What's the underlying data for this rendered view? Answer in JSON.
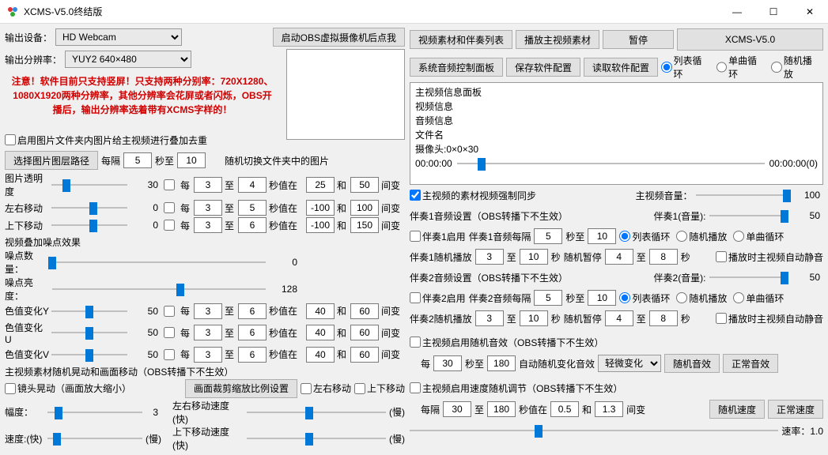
{
  "title": "XCMS-V5.0终结版",
  "win": {
    "min": "—",
    "max": "☐",
    "close": "✕"
  },
  "labels": {
    "output_device": "输出设备：",
    "output_res": "输出分辨率：",
    "start_obs": "启动OBS虚拟摄像机后点我",
    "switch_pics": "随机切换文件夹中的图片",
    "select_path": "选择图片图层路径",
    "interval": "每隔",
    "sec_to": "秒至",
    "sec": "秒",
    "to": "至",
    "value_at": "秒值在",
    "and": "和",
    "between": "间变",
    "each": "每",
    "used": "启用图片文件夹内图片给主视频进行叠加去重",
    "opacity": "图片透明度",
    "lrmove": "左右移动",
    "udmove": "上下移动",
    "noise_hdr": "视频叠加噪点效果",
    "noise_count": "噪点数量：",
    "noise_bright": "噪点亮度：",
    "colY": "色值变化Y",
    "colU": "色值变化U",
    "colV": "色值变化V",
    "shake_hdr": "主视频素材随机晃动和画面移动（OBS转播下不生效）",
    "lens_shake": "镜头晃动（画面放大缩小）",
    "crop_scale": "画面裁剪缩放比例设置",
    "lrmove2": "左右移动",
    "udmove2": "上下移动",
    "amplitude": "幅度：",
    "speed_fast": "速度:(快)",
    "slow": "(慢)",
    "lrspeed": "左右移动速度(快)",
    "udspeed": "上下移动速度(快)",
    "material_list": "视频素材和伴奏列表",
    "play_main": "播放主视频素材",
    "pause": "暂停",
    "brand": "XCMS-V5.0",
    "sys_audio": "系统音频控制面板",
    "save_cfg": "保存软件配置",
    "load_cfg": "读取软件配置",
    "loop_list": "列表循环",
    "loop_single": "单曲循环",
    "loop_random": "随机播放",
    "info_panel": "主视频信息面板",
    "video_info": "视频信息",
    "audio_info": "音频信息",
    "filename": "文件名",
    "cam": "摄像头:0×0×30",
    "t0": "00:00:00",
    "t1": "00:00:00(0)",
    "force_sync": "主视频的素材视频强制同步",
    "main_vol": "主视频音量：",
    "acc1_hdr": "伴奏1音频设置（OBS转播下不生效）",
    "acc1_vol": "伴奏1(音量):",
    "acc1_en": "伴奏1启用",
    "acc1_int": "伴奏1音频每隔",
    "acc1_rand": "伴奏1随机播放",
    "rand_pause": "随机暂停",
    "auto_mute": "播放时主视频自动静音",
    "acc2_hdr": "伴奏2音频设置（OBS转播下不生效）",
    "acc2_vol": "伴奏2(音量):",
    "acc2_en": "伴奏2启用",
    "acc2_int": "伴奏2音频每隔",
    "acc2_rand": "伴奏2随机播放",
    "rand_fx_hdr": "主视频启用随机音效（OBS转播下不生效）",
    "auto_change": "自动随机变化音效",
    "slight": "轻微变化",
    "rand_fx": "随机音效",
    "normal_fx": "正常音效",
    "rand_speed_hdr": "主视频启用速度随机调节（OBS转播下不生效）",
    "rand_speed": "随机速度",
    "normal_speed": "正常速度",
    "rate": "速率：1.0"
  },
  "warn": "注意！软件目前只支持竖屏！只支持两种分别率：720X1280、1080X1920两种分辨率，其他分辨率会花屏或者闪烁，OBS开播后，输出分辨率选着带有XCMS字样的！",
  "device": "HD Webcam",
  "res": "YUY2 640×480",
  "vals": {
    "int_a": "5",
    "int_b": "10",
    "opacity": "30",
    "op_a": "3",
    "op_b": "4",
    "op_v1": "25",
    "op_v2": "50",
    "lr": "0",
    "lr_a": "3",
    "lr_b": "5",
    "lr_v1": "-100",
    "lr_v2": "100",
    "ud": "0",
    "ud_a": "3",
    "ud_b": "6",
    "ud_v1": "-100",
    "ud_v2": "150",
    "nc": "0",
    "nb": "128",
    "y": "50",
    "y_a": "3",
    "y_b": "6",
    "y_v1": "40",
    "y_v2": "60",
    "u": "50",
    "u_a": "3",
    "u_b": "6",
    "u_v1": "40",
    "u_v2": "60",
    "v": "50",
    "v_a": "3",
    "v_b": "6",
    "v_v1": "40",
    "v_v2": "60",
    "amp": "3",
    "mvol": "100",
    "a1vol": "50",
    "a1_a": "5",
    "a1_b": "10",
    "a1_r1": "3",
    "a1_r2": "10",
    "a1_p1": "4",
    "a1_p2": "8",
    "a2vol": "50",
    "a2_a": "5",
    "a2_b": "10",
    "a2_r1": "3",
    "a2_r2": "10",
    "a2_p1": "4",
    "a2_p2": "8",
    "fx_a": "30",
    "fx_b": "180",
    "sp_a": "30",
    "sp_b": "180",
    "sp_v1": "0.5",
    "sp_v2": "1.3"
  },
  "sliders": {
    "opacity": 20,
    "lr": 55,
    "ud": 55,
    "nc": 0,
    "nb": 60,
    "y": 50,
    "u": 50,
    "v": 50,
    "amp": 12,
    "spd": 10,
    "lrspd": 45,
    "udspd": 45,
    "mvol": 98,
    "a1vol": 95,
    "a2vol": 95,
    "tcode": 8,
    "rate": 35
  }
}
